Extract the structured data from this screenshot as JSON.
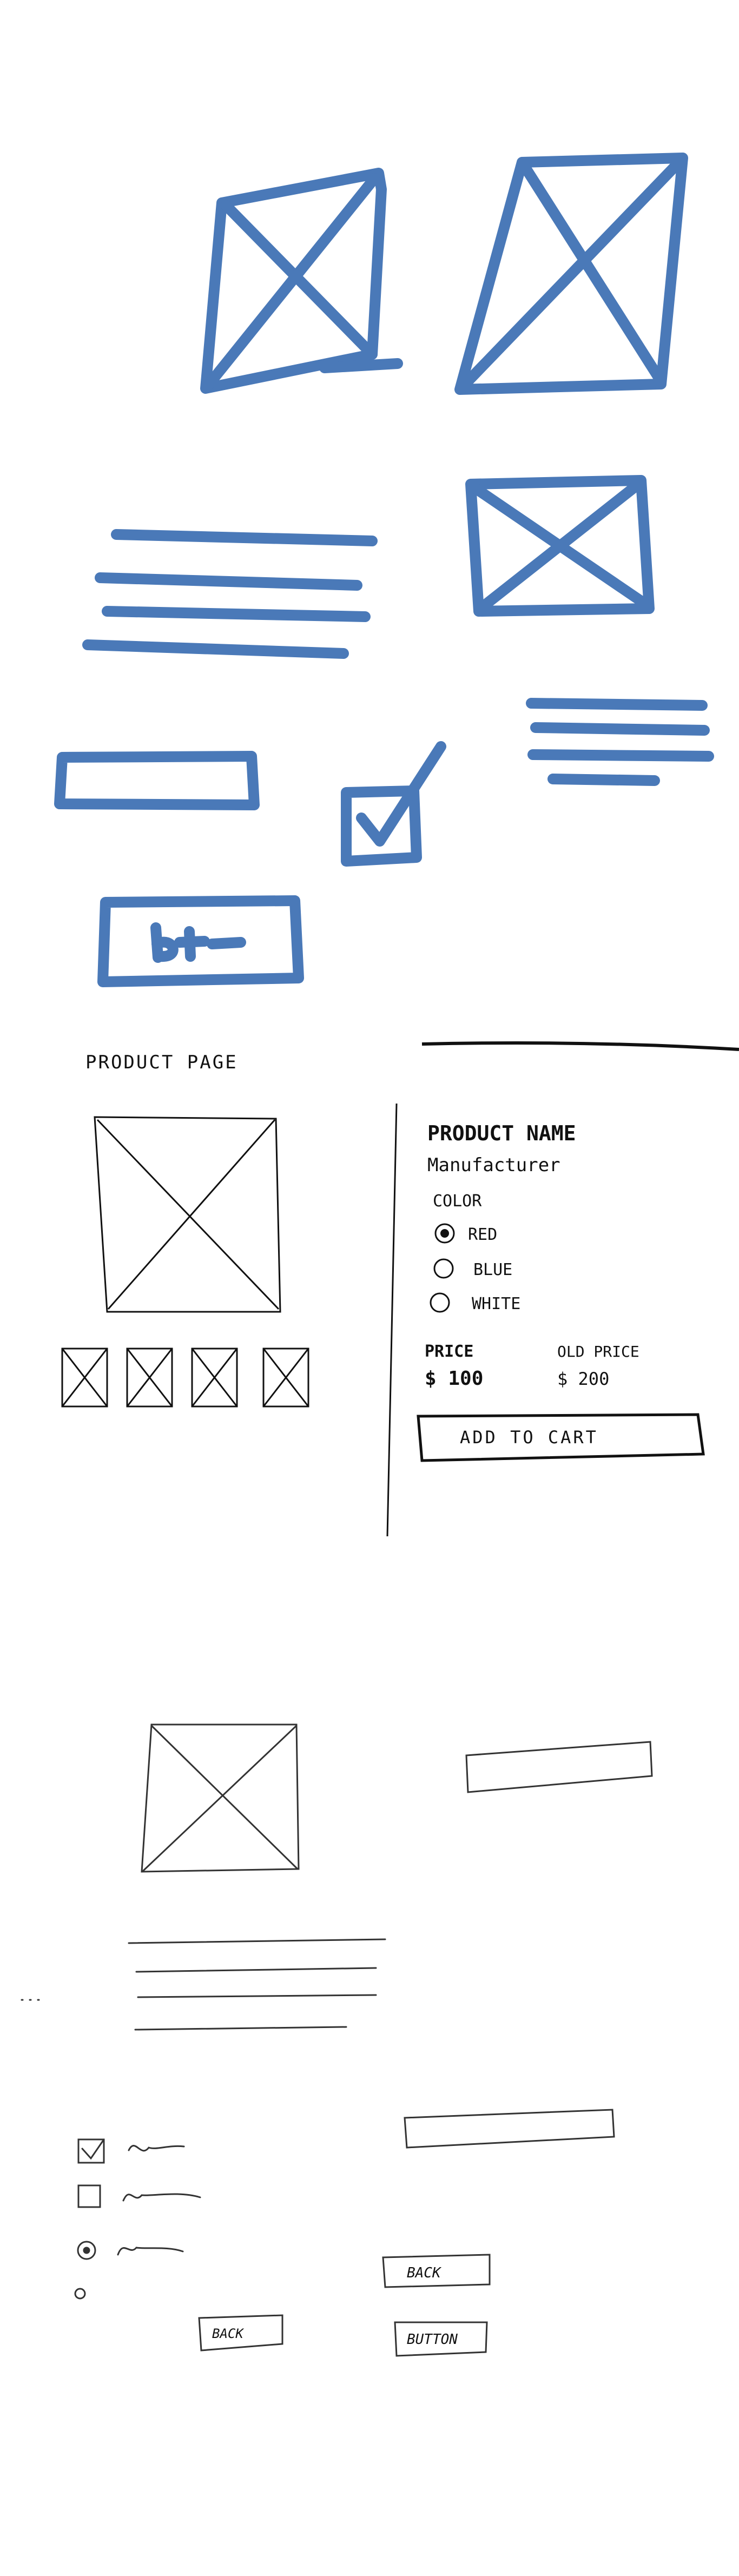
{
  "sheet1": {
    "button_label": "btn",
    "stroke_color": "#4a79b8"
  },
  "sheet2": {
    "page_title": "PRODUCT PAGE",
    "product_name": "PRODUCT NAME",
    "manufacturer": "Manufacturer",
    "color_label": "COLOR",
    "color_options": [
      {
        "label": "RED",
        "selected": true
      },
      {
        "label": "BLUE",
        "selected": false
      },
      {
        "label": "WHITE",
        "selected": false
      }
    ],
    "price_label": "PRICE",
    "price_value": "$ 100",
    "old_price_label": "OLD PRICE",
    "old_price_value": "$ 200",
    "add_to_cart_label": "ADD TO CART",
    "ink_color": "#111111"
  },
  "sheet3": {
    "back_button_right": "BACK",
    "back_button_left": "BACK",
    "generic_button": "BUTTON",
    "ink_color": "#333333"
  }
}
